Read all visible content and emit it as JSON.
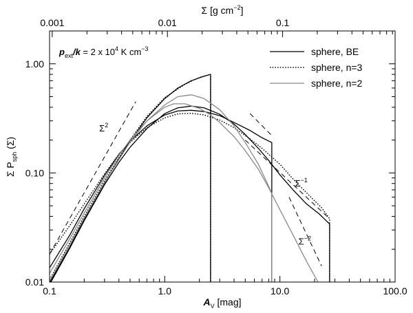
{
  "chart_data": {
    "type": "line",
    "xscale": "log",
    "yscale": "log",
    "xlim": [
      0.1,
      100
    ],
    "ylim": [
      0.01,
      2
    ],
    "xlabel": {
      "main": "A",
      "sub": "V",
      "rest": " [mag]"
    },
    "ylabel": {
      "pre": "Σ P",
      "sub": "sph",
      "post": " (Σ)"
    },
    "top_axis": {
      "label": {
        "pre": "Σ [g cm",
        "sup": "−2",
        "post": "]"
      },
      "ticks": [
        {
          "value": 0.001,
          "label": "0.001",
          "at_av": 0.1055
        },
        {
          "value": 0.01,
          "label": "0.01",
          "at_av": 1.055
        },
        {
          "value": 0.1,
          "label": "0.1",
          "at_av": 10.55
        }
      ]
    },
    "x_ticks": [
      {
        "value": 0.1,
        "label": "0.1"
      },
      {
        "value": 1,
        "label": "1.0"
      },
      {
        "value": 10,
        "label": "10.0"
      },
      {
        "value": 100,
        "label": "100.0"
      }
    ],
    "y_ticks": [
      {
        "value": 0.01,
        "label": "0.01"
      },
      {
        "value": 0.1,
        "label": "0.10"
      },
      {
        "value": 1,
        "label": "1.00"
      }
    ],
    "annotation": {
      "lhs_p": "p",
      "lhs_sub": "ext",
      "lhs_k": "/k",
      "rhs": " = 2 x 10",
      "exp": "4",
      "units": " K cm",
      "units_sup": "−3"
    },
    "legend": {
      "placement": "top-right",
      "entries": [
        {
          "name": "sphere, BE",
          "style": "solid",
          "color": "#000000"
        },
        {
          "name": "sphere, n=3",
          "style": "dotted",
          "color": "#000000"
        },
        {
          "name": "sphere, n=2",
          "style": "solid",
          "color": "#888888"
        }
      ]
    },
    "power_law_labels": [
      {
        "base": "Σ",
        "exp": "2",
        "x": 0.27,
        "y": 0.24
      },
      {
        "base": "Σ",
        "exp": "−1",
        "x": 13.5,
        "y": 0.075
      },
      {
        "base": "Σ",
        "exp": "−2",
        "x": 14.5,
        "y": 0.022
      }
    ],
    "reference_lines": [
      {
        "name": "sigma2",
        "points": [
          [
            0.1,
            0.018
          ],
          [
            0.56,
            0.45
          ]
        ]
      },
      {
        "name": "sigma-1-a",
        "points": [
          [
            5.5,
            0.35
          ],
          [
            8.5,
            0.22
          ]
        ]
      },
      {
        "name": "sigma-1-b",
        "points": [
          [
            5.0,
            0.2
          ],
          [
            27,
            0.038
          ]
        ]
      },
      {
        "name": "sigma-2",
        "points": [
          [
            12,
            0.06
          ],
          [
            23,
            0.014
          ]
        ]
      }
    ],
    "series": [
      {
        "name": "sphere, BE",
        "legend_index": 0,
        "style": "solid",
        "color": "#000000",
        "points": [
          [
            0.1,
            0.0095
          ],
          [
            0.15,
            0.0205
          ],
          [
            0.2,
            0.0365
          ],
          [
            0.3,
            0.078
          ],
          [
            0.4,
            0.125
          ],
          [
            0.5,
            0.172
          ],
          [
            0.7,
            0.255
          ],
          [
            1.0,
            0.35
          ],
          [
            1.3,
            0.395
          ],
          [
            1.7,
            0.41
          ],
          [
            2.2,
            0.395
          ],
          [
            3.0,
            0.345
          ],
          [
            4.0,
            0.28
          ],
          [
            5.0,
            0.225
          ],
          [
            6.5,
            0.168
          ],
          [
            8.0,
            0.13
          ],
          [
            10.0,
            0.096
          ],
          [
            13.0,
            0.07
          ],
          [
            17.0,
            0.052
          ],
          [
            22.0,
            0.042
          ],
          [
            27.0,
            0.034
          ],
          [
            27.0,
            0.009
          ]
        ]
      },
      {
        "name": "sphere, BE (truncated A)",
        "legend_index": 0,
        "style": "solid",
        "color": "#000000",
        "points": [
          [
            0.1,
            0.0098
          ],
          [
            0.15,
            0.021
          ],
          [
            0.2,
            0.0375
          ],
          [
            0.3,
            0.081
          ],
          [
            0.4,
            0.135
          ],
          [
            0.5,
            0.195
          ],
          [
            0.7,
            0.32
          ],
          [
            1.0,
            0.48
          ],
          [
            1.3,
            0.6
          ],
          [
            1.7,
            0.7
          ],
          [
            2.2,
            0.77
          ],
          [
            2.5,
            0.8
          ],
          [
            2.5,
            0.009
          ]
        ]
      },
      {
        "name": "sphere, BE (truncated B)",
        "legend_index": 0,
        "style": "solid",
        "color": "#000000",
        "points": [
          [
            0.1,
            0.0135
          ],
          [
            0.15,
            0.027
          ],
          [
            0.2,
            0.047
          ],
          [
            0.3,
            0.095
          ],
          [
            0.4,
            0.148
          ],
          [
            0.5,
            0.195
          ],
          [
            0.7,
            0.27
          ],
          [
            1.0,
            0.34
          ],
          [
            1.3,
            0.37
          ],
          [
            1.7,
            0.375
          ],
          [
            2.2,
            0.365
          ],
          [
            3.0,
            0.335
          ],
          [
            4.0,
            0.29
          ],
          [
            5.5,
            0.245
          ],
          [
            7.0,
            0.21
          ],
          [
            8.5,
            0.19
          ],
          [
            8.5,
            0.009
          ]
        ]
      },
      {
        "name": "sphere, n=3",
        "legend_index": 1,
        "style": "dotted",
        "color": "#000000",
        "points": [
          [
            0.1,
            0.018
          ],
          [
            0.15,
            0.033
          ],
          [
            0.2,
            0.052
          ],
          [
            0.3,
            0.098
          ],
          [
            0.4,
            0.148
          ],
          [
            0.5,
            0.19
          ],
          [
            0.7,
            0.26
          ],
          [
            1.0,
            0.32
          ],
          [
            1.3,
            0.348
          ],
          [
            1.7,
            0.352
          ],
          [
            2.2,
            0.34
          ],
          [
            3.0,
            0.305
          ],
          [
            4.0,
            0.26
          ],
          [
            5.5,
            0.205
          ],
          [
            7.0,
            0.168
          ],
          [
            10.0,
            0.12
          ],
          [
            13.0,
            0.088
          ],
          [
            18.0,
            0.062
          ],
          [
            23.0,
            0.048
          ],
          [
            27.0,
            0.038
          ],
          [
            27.0,
            0.009
          ]
        ]
      },
      {
        "name": "sphere, n=3 (truncated)",
        "legend_index": 1,
        "style": "dotted",
        "color": "#000000",
        "points": [
          [
            0.1,
            0.0105
          ],
          [
            0.2,
            0.04
          ],
          [
            0.3,
            0.085
          ],
          [
            0.5,
            0.2
          ],
          [
            0.7,
            0.33
          ],
          [
            1.0,
            0.49
          ],
          [
            1.5,
            0.65
          ],
          [
            2.0,
            0.75
          ],
          [
            2.5,
            0.8
          ],
          [
            2.5,
            0.009
          ]
        ]
      },
      {
        "name": "sphere, n=2",
        "legend_index": 2,
        "style": "solid",
        "color": "#888888",
        "points": [
          [
            0.1,
            0.012
          ],
          [
            0.15,
            0.025
          ],
          [
            0.2,
            0.043
          ],
          [
            0.3,
            0.09
          ],
          [
            0.4,
            0.145
          ],
          [
            0.5,
            0.2
          ],
          [
            0.7,
            0.3
          ],
          [
            1.0,
            0.4
          ],
          [
            1.2,
            0.43
          ],
          [
            1.5,
            0.43
          ],
          [
            2.0,
            0.39
          ],
          [
            2.5,
            0.34
          ],
          [
            3.0,
            0.29
          ],
          [
            4.0,
            0.215
          ],
          [
            5.0,
            0.16
          ],
          [
            6.5,
            0.108
          ],
          [
            8.0,
            0.073
          ],
          [
            10.0,
            0.046
          ],
          [
            13.0,
            0.027
          ],
          [
            17.0,
            0.0155
          ],
          [
            22.0,
            0.0095
          ]
        ]
      },
      {
        "name": "sphere, n=2 (truncated)",
        "legend_index": 2,
        "style": "solid",
        "color": "#888888",
        "points": [
          [
            0.1,
            0.0102
          ],
          [
            0.2,
            0.0385
          ],
          [
            0.3,
            0.082
          ],
          [
            0.5,
            0.192
          ],
          [
            0.7,
            0.3
          ],
          [
            1.0,
            0.42
          ],
          [
            1.3,
            0.5
          ],
          [
            1.7,
            0.52
          ],
          [
            2.2,
            0.48
          ],
          [
            3.0,
            0.38
          ],
          [
            4.0,
            0.27
          ],
          [
            5.0,
            0.19
          ],
          [
            6.5,
            0.12
          ],
          [
            8.0,
            0.075
          ],
          [
            8.5,
            0.065
          ],
          [
            8.5,
            0.009
          ]
        ]
      }
    ]
  }
}
